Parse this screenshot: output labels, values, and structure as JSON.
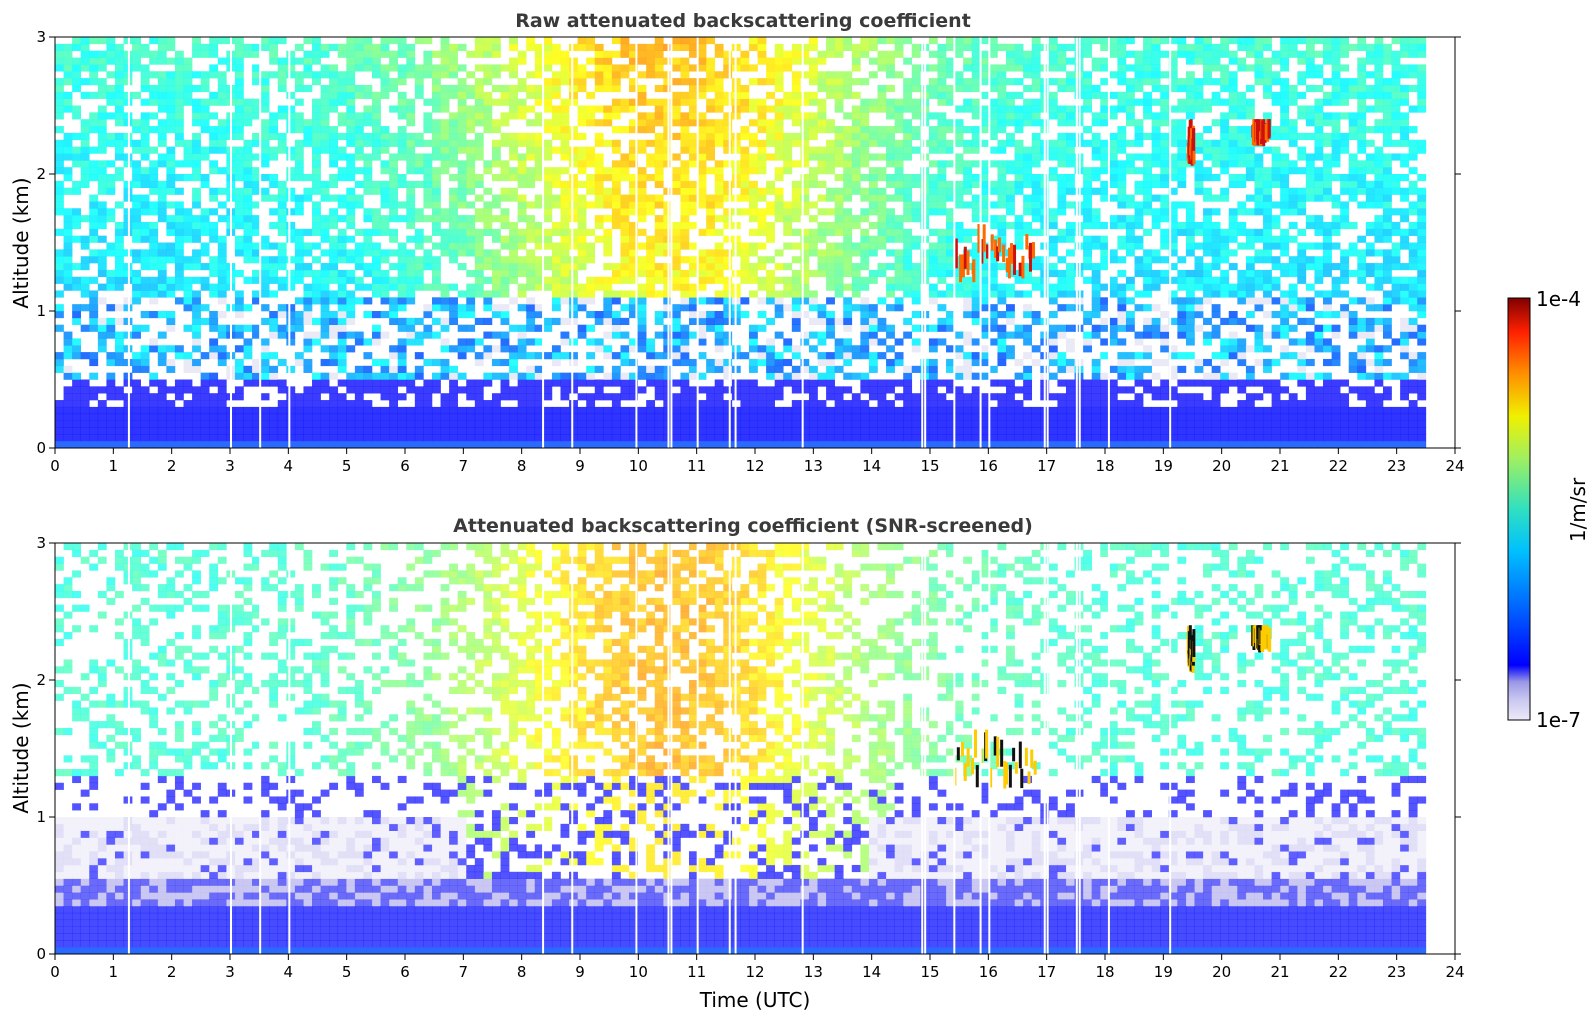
{
  "chart_data": [
    {
      "type": "heatmap",
      "title": "Raw attenuated backscattering coefficient",
      "xlabel": "",
      "ylabel": "Altitude (km)",
      "xlim": [
        0,
        24
      ],
      "ylim": [
        0,
        3
      ],
      "xticks": [
        "0",
        "1",
        "2",
        "3",
        "4",
        "5",
        "6",
        "7",
        "8",
        "9",
        "10",
        "11",
        "12",
        "13",
        "14",
        "15",
        "16",
        "17",
        "18",
        "19",
        "20",
        "21",
        "22",
        "23",
        "24"
      ],
      "yticks": [
        "0",
        "1",
        "2",
        "3"
      ],
      "data_end_hour": 23.5,
      "gap_hours": [
        1.25,
        3.0,
        3.5,
        4.0,
        8.35,
        8.85,
        9.95,
        10.5,
        10.55,
        11.0,
        11.55,
        11.65,
        12.8,
        14.85,
        14.9,
        15.4,
        15.85,
        16.0,
        16.95,
        17.0,
        17.5,
        17.55,
        18.05,
        19.1
      ],
      "clouds": [
        {
          "hours": [
            15.4,
            16.8
          ],
          "altitude_km": [
            1.2,
            1.7
          ]
        },
        {
          "hours": [
            19.4,
            19.5
          ],
          "altitude_km": [
            2.05,
            2.35
          ]
        },
        {
          "hours": [
            20.5,
            20.8
          ],
          "altitude_km": [
            2.2,
            2.35
          ]
        }
      ]
    },
    {
      "type": "heatmap",
      "title": "Attenuated backscattering coefficient (SNR-screened)",
      "xlabel": "Time (UTC)",
      "ylabel": "Altitude (km)",
      "xlim": [
        0,
        24
      ],
      "ylim": [
        0,
        3
      ],
      "xticks": [
        "0",
        "1",
        "2",
        "3",
        "4",
        "5",
        "6",
        "7",
        "8",
        "9",
        "10",
        "11",
        "12",
        "13",
        "14",
        "15",
        "16",
        "17",
        "18",
        "19",
        "20",
        "21",
        "22",
        "23",
        "24"
      ],
      "yticks": [
        "0",
        "1",
        "2",
        "3"
      ],
      "data_end_hour": 23.5,
      "gap_hours": [
        1.25,
        3.0,
        3.5,
        4.0,
        8.35,
        8.85,
        9.95,
        10.5,
        10.55,
        11.0,
        11.55,
        11.65,
        12.8,
        14.85,
        14.9,
        15.4,
        15.85,
        16.0,
        16.95,
        17.0,
        17.5,
        17.55,
        18.05,
        19.1
      ],
      "clouds": [
        {
          "hours": [
            15.4,
            16.8
          ],
          "altitude_km": [
            1.2,
            1.7
          ]
        },
        {
          "hours": [
            19.4,
            19.5
          ],
          "altitude_km": [
            2.05,
            2.35
          ]
        },
        {
          "hours": [
            20.5,
            20.8
          ],
          "altitude_km": [
            2.2,
            2.35
          ]
        }
      ]
    }
  ],
  "colorbar": {
    "label": "1/m/sr",
    "max_label": "1e-4",
    "min_label": "1e-7",
    "scale": "log",
    "range": [
      1e-07,
      0.0001
    ],
    "colormap": "jet with light lavender low end",
    "colors": [
      "#eceaf8",
      "#c8c6ef",
      "#9a98e6",
      "#0000ff",
      "#0060ff",
      "#00c0ff",
      "#30e0c0",
      "#a0f060",
      "#f0f000",
      "#ff9000",
      "#ff2000",
      "#800000"
    ]
  }
}
